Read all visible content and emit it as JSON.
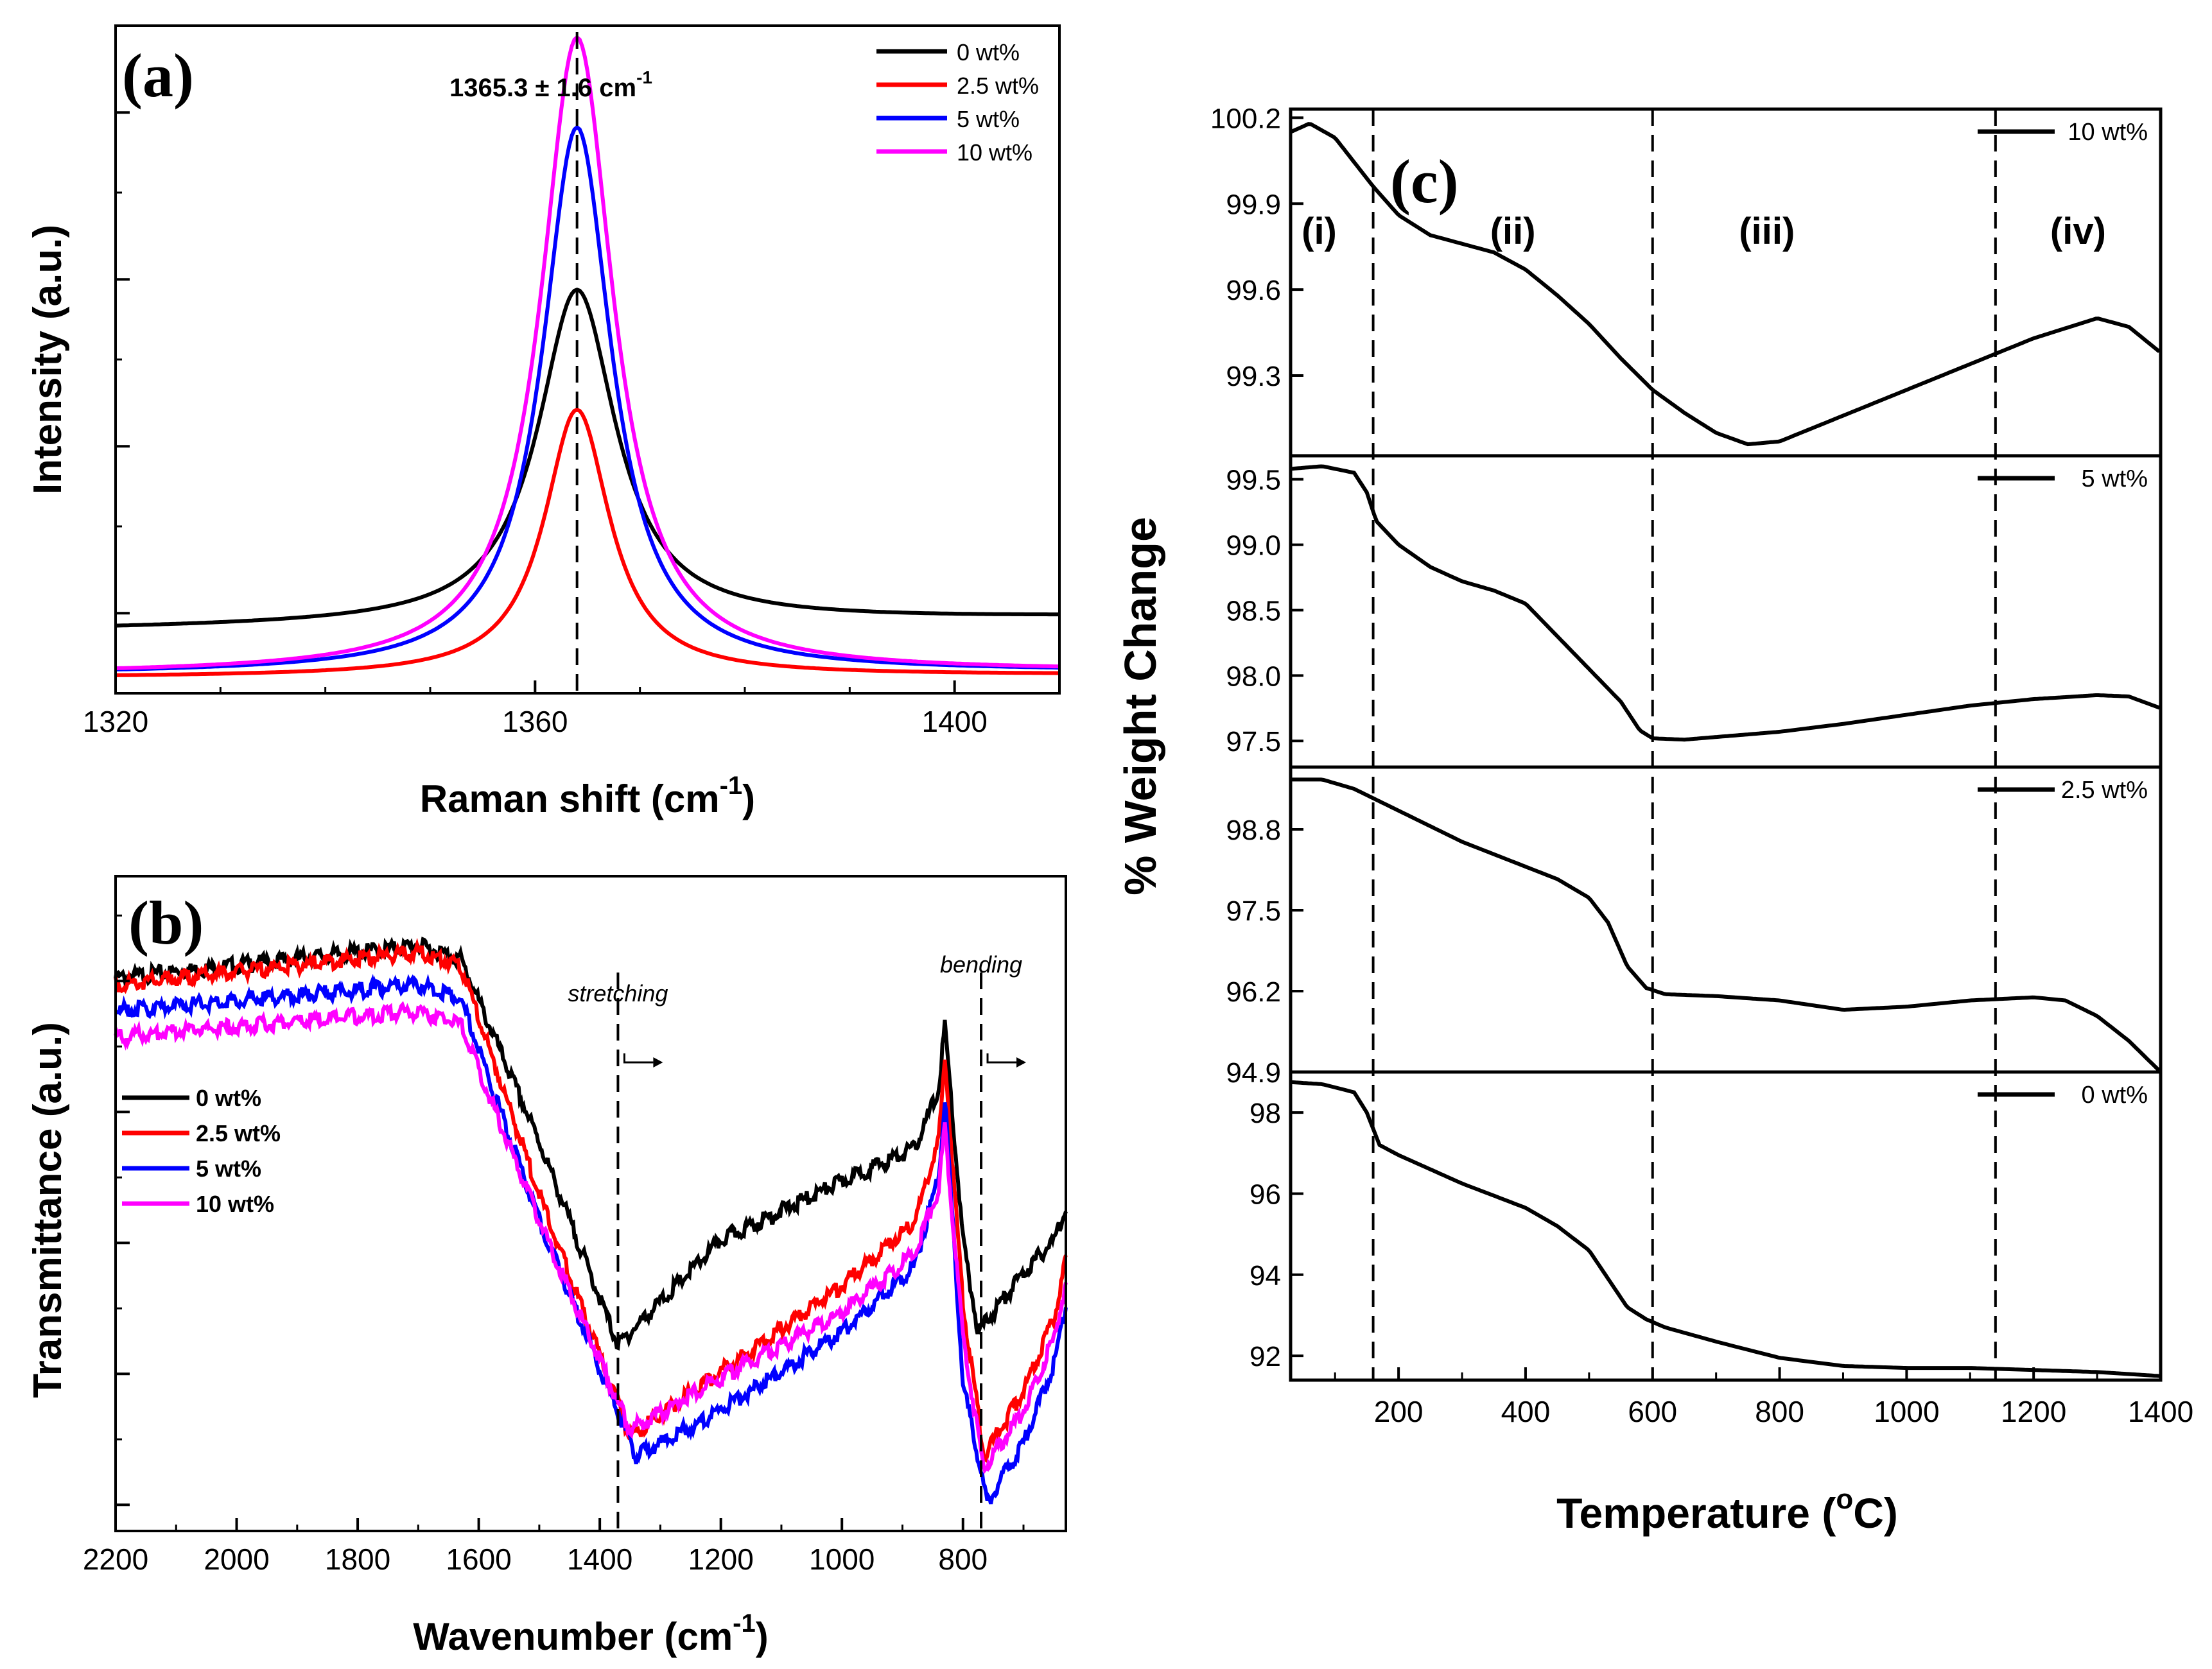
{
  "figure": {
    "colors": {
      "0 wt%": "#000000",
      "2.5 wt%": "#ff0000",
      "5 wt%": "#0000ff",
      "10 wt%": "#ff00ff"
    }
  },
  "chart_data": [
    {
      "panel": "(a)",
      "type": "line",
      "title": "",
      "xlabel": "Raman shift (cm-1)",
      "xlabel_main": "Raman shift (cm",
      "xlabel_sup": "-1",
      "xlabel_close": ")",
      "ylabel": "Intensity (a.u.)",
      "xlim": [
        1320,
        1410
      ],
      "ylim": [
        -0.02,
        1.02
      ],
      "xticks": [
        1320,
        1360,
        1400
      ],
      "y_tick_labels_shown": false,
      "annotation": "1365.3 ± 1.6 cm-1",
      "annotation_main": "1365.3 ± 1.6 cm",
      "annotation_sup": "-1",
      "peak_marker_x": 1364,
      "legend_position": "top-right",
      "series": [
        {
          "name": "0 wt%",
          "baseline": 0.08,
          "peak": 0.6,
          "center": 1364,
          "width": 4.5
        },
        {
          "name": "2.5 wt%",
          "baseline": 0.005,
          "peak": 0.42,
          "center": 1364,
          "width": 3.8
        },
        {
          "name": "5 wt%",
          "baseline": 0.01,
          "peak": 0.86,
          "center": 1364,
          "width": 4.0
        },
        {
          "name": "10 wt%",
          "baseline": 0.01,
          "peak": 1.0,
          "center": 1364,
          "width": 4.2
        }
      ]
    },
    {
      "panel": "(b)",
      "type": "line",
      "title": "",
      "xlabel": "Wavenumber (cm-1)",
      "xlabel_main": "Wavenumber (cm",
      "xlabel_sup": "-1",
      "xlabel_close": ")",
      "ylabel": "Transmittance (a.u.)",
      "xlim": [
        2200,
        630
      ],
      "ylim": [
        0,
        1
      ],
      "xticks": [
        2200,
        2000,
        1800,
        1600,
        1400,
        1200,
        1000,
        800
      ],
      "y_tick_labels_shown": false,
      "annotations": [
        {
          "text": "stretching",
          "x": 1370
        },
        {
          "text": "bending",
          "x": 770
        }
      ],
      "legend_position": "middle-left",
      "series": [
        {
          "name": "0 wt%",
          "x": [
            2200,
            1700,
            1630,
            1500,
            1370,
            1200,
            1000,
            880,
            840,
            830,
            800,
            775,
            700,
            650,
            630
          ],
          "y": [
            0.85,
            0.9,
            0.88,
            0.6,
            0.29,
            0.45,
            0.54,
            0.59,
            0.68,
            0.78,
            0.45,
            0.31,
            0.4,
            0.45,
            0.5
          ]
        },
        {
          "name": "2.5 wt%",
          "x": [
            2200,
            1700,
            1630,
            1500,
            1350,
            1200,
            1000,
            880,
            840,
            830,
            800,
            765,
            700,
            650,
            630
          ],
          "y": [
            0.84,
            0.89,
            0.87,
            0.52,
            0.15,
            0.25,
            0.38,
            0.48,
            0.6,
            0.73,
            0.35,
            0.12,
            0.22,
            0.33,
            0.42
          ]
        },
        {
          "name": "5 wt%",
          "x": [
            2200,
            1700,
            1630,
            1500,
            1340,
            1200,
            1000,
            880,
            840,
            830,
            800,
            760,
            700,
            650,
            630
          ],
          "y": [
            0.8,
            0.84,
            0.82,
            0.48,
            0.12,
            0.19,
            0.31,
            0.41,
            0.55,
            0.67,
            0.23,
            0.05,
            0.14,
            0.26,
            0.35
          ]
        },
        {
          "name": "10 wt%",
          "x": [
            2200,
            1700,
            1630,
            1500,
            1350,
            1200,
            1000,
            880,
            840,
            830,
            800,
            765,
            700,
            650,
            630
          ],
          "y": [
            0.76,
            0.8,
            0.78,
            0.48,
            0.16,
            0.24,
            0.34,
            0.43,
            0.53,
            0.62,
            0.3,
            0.1,
            0.19,
            0.3,
            0.38
          ]
        }
      ]
    },
    {
      "panel": "(c)",
      "type": "line",
      "title": "",
      "xlabel": "Temperature (°C)",
      "xlabel_main": "Temperature (",
      "xlabel_sup": "o",
      "xlabel_close": "C)",
      "ylabel": "% Weight Change",
      "xlim": [
        30,
        1400
      ],
      "xticks": [
        200,
        400,
        600,
        800,
        1000,
        1200,
        1400
      ],
      "region_labels": [
        {
          "text": "(i)",
          "x": 75
        },
        {
          "text": "(ii)",
          "x": 380
        },
        {
          "text": "(iii)",
          "x": 780
        },
        {
          "text": "(iv)",
          "x": 1270
        }
      ],
      "vlines": [
        160,
        600,
        1140
      ],
      "subplots": [
        {
          "name": "10 wt%",
          "ylim": [
            99.02,
            100.23
          ],
          "yticks": [
            100.2,
            99.9,
            99.6,
            99.3
          ],
          "x": [
            30,
            60,
            100,
            160,
            200,
            250,
            300,
            350,
            400,
            450,
            500,
            550,
            600,
            650,
            700,
            750,
            800,
            900,
            1000,
            1100,
            1200,
            1300,
            1350,
            1400
          ],
          "y": [
            100.15,
            100.18,
            100.13,
            99.96,
            99.86,
            99.79,
            99.76,
            99.73,
            99.67,
            99.58,
            99.48,
            99.36,
            99.25,
            99.17,
            99.1,
            99.06,
            99.07,
            99.16,
            99.25,
            99.34,
            99.43,
            99.5,
            99.47,
            99.38
          ]
        },
        {
          "name": "5 wt%",
          "ylim": [
            97.3,
            99.68
          ],
          "yticks": [
            99.5,
            99.0,
            98.5,
            98.0,
            97.5
          ],
          "x": [
            30,
            80,
            130,
            150,
            165,
            200,
            250,
            300,
            350,
            400,
            450,
            500,
            550,
            580,
            600,
            650,
            700,
            800,
            900,
            1000,
            1100,
            1200,
            1300,
            1350,
            1400
          ],
          "y": [
            99.58,
            99.6,
            99.55,
            99.4,
            99.18,
            99.0,
            98.83,
            98.72,
            98.65,
            98.55,
            98.3,
            98.05,
            97.8,
            97.58,
            97.52,
            97.51,
            97.53,
            97.57,
            97.63,
            97.7,
            97.77,
            97.82,
            97.85,
            97.84,
            97.75
          ]
        },
        {
          "name": "2.5 wt%",
          "ylim": [
            94.9,
            99.8
          ],
          "yticks": [
            98.8,
            97.5,
            96.2,
            94.9
          ],
          "x": [
            30,
            80,
            130,
            160,
            200,
            250,
            300,
            350,
            400,
            450,
            500,
            530,
            560,
            590,
            620,
            700,
            800,
            900,
            1000,
            1100,
            1200,
            1250,
            1300,
            1350,
            1400
          ],
          "y": [
            99.6,
            99.6,
            99.45,
            99.3,
            99.1,
            98.85,
            98.6,
            98.4,
            98.2,
            98.0,
            97.7,
            97.3,
            96.6,
            96.25,
            96.15,
            96.12,
            96.05,
            95.9,
            95.95,
            96.05,
            96.1,
            96.05,
            95.8,
            95.4,
            94.9
          ]
        },
        {
          "name": "0 wt%",
          "ylim": [
            91.4,
            99.0
          ],
          "yticks": [
            98,
            96,
            94,
            92
          ],
          "x": [
            30,
            80,
            130,
            150,
            170,
            200,
            250,
            300,
            350,
            400,
            450,
            500,
            530,
            560,
            590,
            620,
            700,
            800,
            900,
            1000,
            1100,
            1200,
            1300,
            1350,
            1400
          ],
          "y": [
            98.75,
            98.7,
            98.5,
            98.0,
            97.2,
            96.95,
            96.6,
            96.25,
            95.95,
            95.65,
            95.2,
            94.6,
            93.9,
            93.2,
            92.9,
            92.7,
            92.35,
            91.95,
            91.75,
            91.7,
            91.7,
            91.65,
            91.6,
            91.55,
            91.5
          ]
        }
      ]
    }
  ]
}
